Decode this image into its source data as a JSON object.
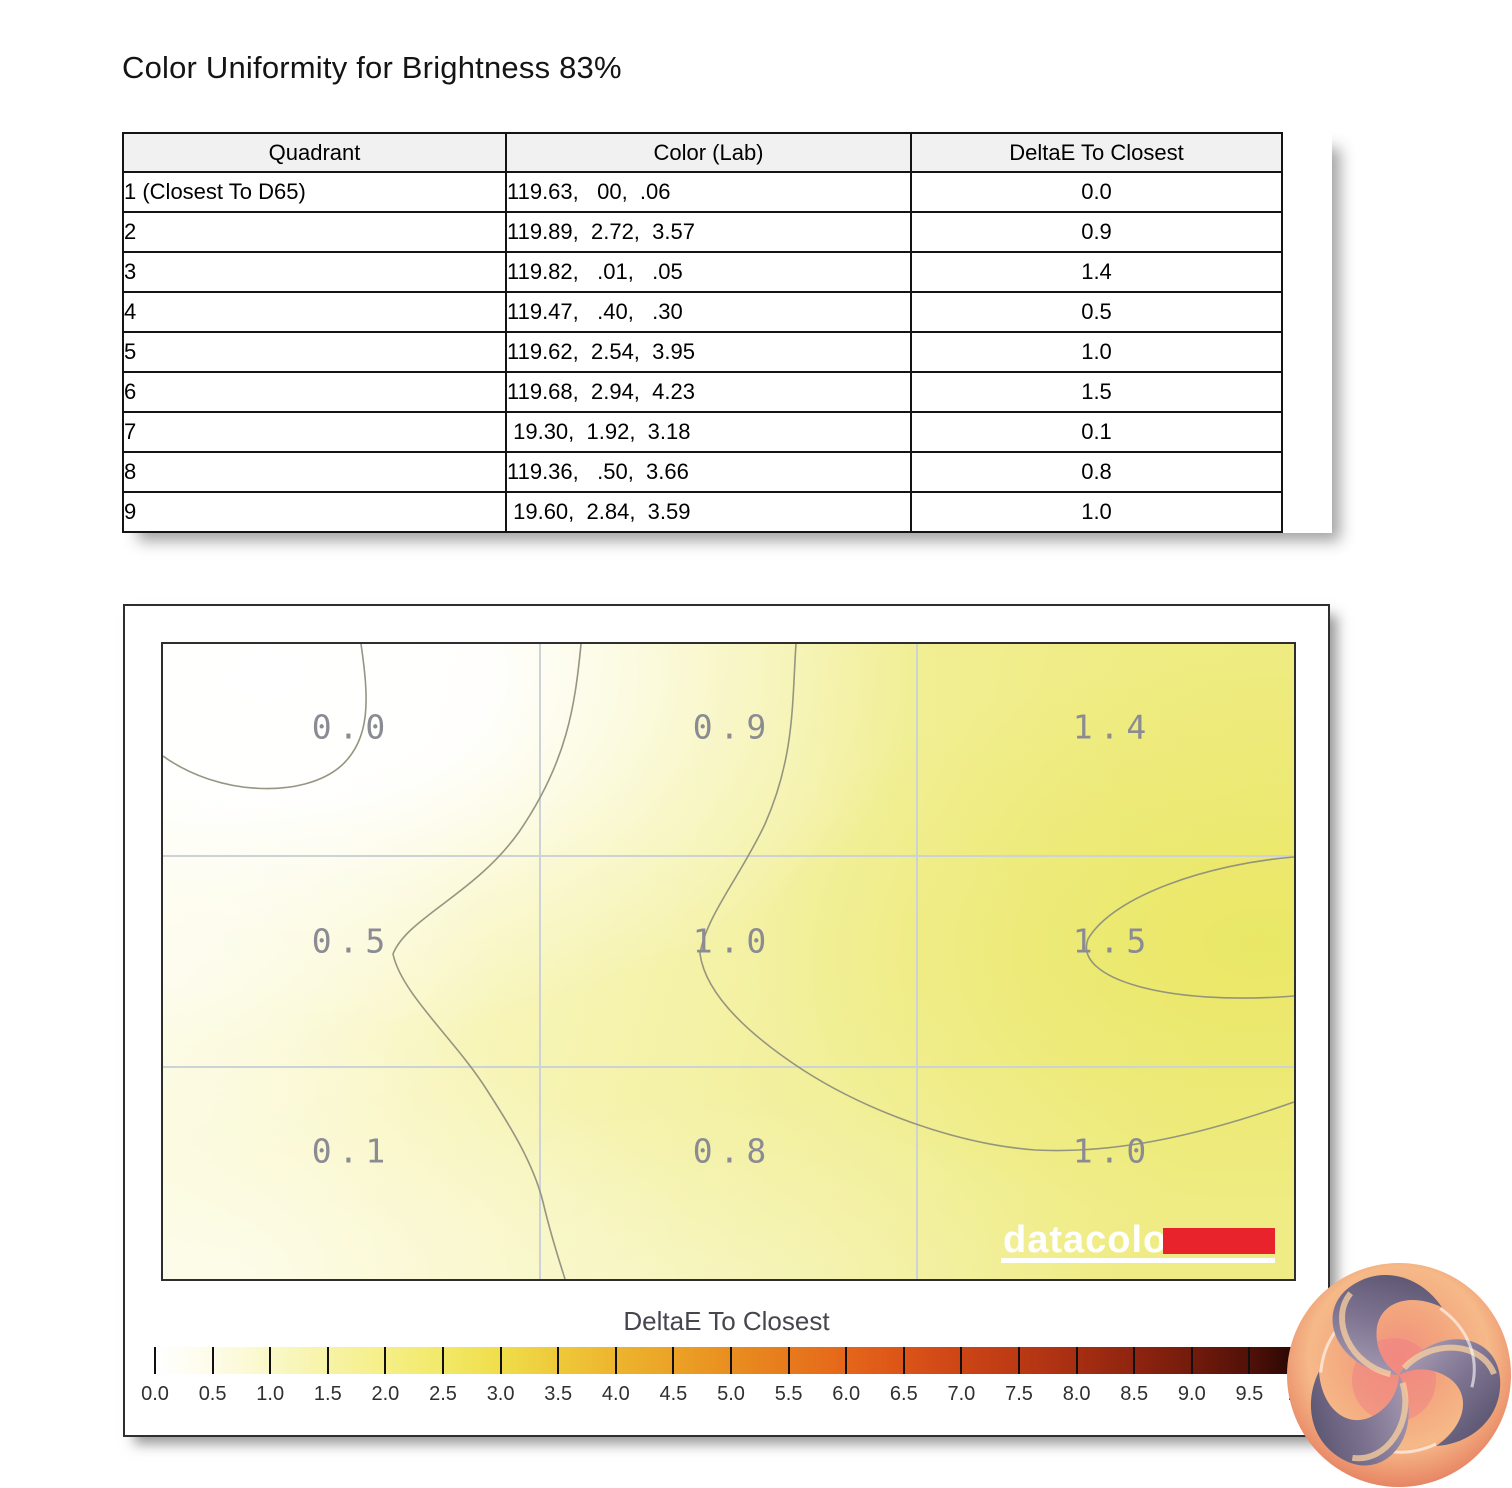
{
  "page": {
    "title": "Color Uniformity for Brightness 83%"
  },
  "table": {
    "headers": [
      "Quadrant",
      "Color (Lab)",
      "DeltaE To Closest"
    ],
    "rows": [
      {
        "quadrant": "1 (Closest To D65)",
        "color_lab": "119.63,   00,  .06",
        "delta_e": "0.0"
      },
      {
        "quadrant": "2",
        "color_lab": "119.89,  2.72,  3.57",
        "delta_e": "0.9"
      },
      {
        "quadrant": "3",
        "color_lab": "119.82,   .01,   .05",
        "delta_e": "1.4"
      },
      {
        "quadrant": "4",
        "color_lab": "119.47,   .40,   .30",
        "delta_e": "0.5"
      },
      {
        "quadrant": "5",
        "color_lab": "119.62,  2.54,  3.95",
        "delta_e": "1.0"
      },
      {
        "quadrant": "6",
        "color_lab": "119.68,  2.94,  4.23",
        "delta_e": "1.5"
      },
      {
        "quadrant": "7",
        "color_lab": " 19.30,  1.92,  3.18",
        "delta_e": "0.1"
      },
      {
        "quadrant": "8",
        "color_lab": "119.36,   .50,  3.66",
        "delta_e": "0.8"
      },
      {
        "quadrant": "9",
        "color_lab": " 19.60,  2.84,  3.59",
        "delta_e": "1.0"
      }
    ]
  },
  "map": {
    "cells": [
      {
        "row": 0,
        "col": 0,
        "value": "0.0"
      },
      {
        "row": 0,
        "col": 1,
        "value": "0.9"
      },
      {
        "row": 0,
        "col": 2,
        "value": "1.4"
      },
      {
        "row": 1,
        "col": 0,
        "value": "0.5"
      },
      {
        "row": 1,
        "col": 1,
        "value": "1.0"
      },
      {
        "row": 1,
        "col": 2,
        "value": "1.5"
      },
      {
        "row": 2,
        "col": 0,
        "value": "0.1"
      },
      {
        "row": 2,
        "col": 1,
        "value": "0.8"
      },
      {
        "row": 2,
        "col": 2,
        "value": "1.0"
      }
    ],
    "watermark_text": "datacolor",
    "watermark_accent_color": "#e8232b"
  },
  "scale": {
    "title": "DeltaE To Closest",
    "tick_labels": [
      "0.0",
      "0.5",
      "1.0",
      "1.5",
      "2.0",
      "2.5",
      "3.0",
      "3.5",
      "4.0",
      "4.5",
      "5.0",
      "5.5",
      "6.0",
      "6.5",
      "7.0",
      "7.5",
      "8.0",
      "8.5",
      "9.0",
      "9.5",
      "10.0"
    ],
    "tick_colors": [
      "#ffffff",
      "#fdfce8",
      "#faf8c8",
      "#f7f3a6",
      "#f5ef86",
      "#f2e968",
      "#f0dd4a",
      "#eec93a",
      "#edb52e",
      "#eba226",
      "#e98e20",
      "#e77a1c",
      "#e5661a",
      "#db5418",
      "#cc4516",
      "#bb3914",
      "#a62e12",
      "#8f2410",
      "#731b0c",
      "#511108",
      "#1d0502"
    ]
  },
  "chart_data": {
    "type": "heatmap",
    "title": "Color Uniformity for Brightness 83%",
    "rows": [
      "top",
      "middle",
      "bottom"
    ],
    "columns": [
      "left",
      "center",
      "right"
    ],
    "grid_values": [
      [
        0.0,
        0.9,
        1.4
      ],
      [
        0.5,
        1.0,
        1.5
      ],
      [
        0.1,
        0.8,
        1.0
      ]
    ],
    "quadrant_values": {
      "1": 0.0,
      "2": 0.9,
      "3": 1.4,
      "4": 0.5,
      "5": 1.0,
      "6": 1.5,
      "7": 0.1,
      "8": 0.8,
      "9": 1.0
    },
    "colorbar": {
      "label": "DeltaE To Closest",
      "min": 0.0,
      "max": 10.0,
      "tick_step": 0.5
    },
    "legend_position": "bottom",
    "grid": "3x3 light gray grid on",
    "annotations": "contour lines drawn between quadrant values"
  }
}
